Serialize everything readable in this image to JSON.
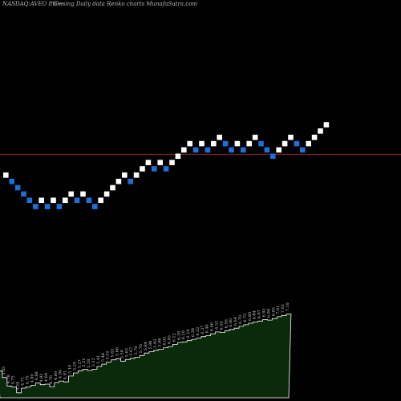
{
  "header": {
    "ticker": "NASDAQ:AVEO 8%~",
    "description": "Closing Daily data  Renko  charts MunafaSutra.com"
  },
  "chart_data": {
    "type": "renko",
    "colors": {
      "background": "#000000",
      "up_brick": "#ffffff",
      "down_brick": "#1e6fd9",
      "reference_line": "#8b2b2b",
      "volume_fill": "#0b2a0b",
      "volume_line": "#ffffff"
    },
    "bricks": [
      {
        "level": 7.88,
        "dir": "up"
      },
      {
        "level": 7.83,
        "dir": "down"
      },
      {
        "level": 7.78,
        "dir": "down"
      },
      {
        "level": 7.73,
        "dir": "down"
      },
      {
        "level": 7.68,
        "dir": "down"
      },
      {
        "level": 7.63,
        "dir": "down"
      },
      {
        "level": 7.68,
        "dir": "up"
      },
      {
        "level": 7.63,
        "dir": "down"
      },
      {
        "level": 7.68,
        "dir": "up"
      },
      {
        "level": 7.63,
        "dir": "down"
      },
      {
        "level": 7.68,
        "dir": "up"
      },
      {
        "level": 7.73,
        "dir": "up"
      },
      {
        "level": 7.68,
        "dir": "down"
      },
      {
        "level": 7.73,
        "dir": "up"
      },
      {
        "level": 7.68,
        "dir": "down"
      },
      {
        "level": 7.63,
        "dir": "down"
      },
      {
        "level": 7.68,
        "dir": "up"
      },
      {
        "level": 7.73,
        "dir": "up"
      },
      {
        "level": 7.78,
        "dir": "up"
      },
      {
        "level": 7.83,
        "dir": "up"
      },
      {
        "level": 7.88,
        "dir": "up"
      },
      {
        "level": 7.83,
        "dir": "down"
      },
      {
        "level": 7.88,
        "dir": "up"
      },
      {
        "level": 7.93,
        "dir": "up"
      },
      {
        "level": 7.98,
        "dir": "up"
      },
      {
        "level": 7.93,
        "dir": "down"
      },
      {
        "level": 7.98,
        "dir": "up"
      },
      {
        "level": 7.93,
        "dir": "down"
      },
      {
        "level": 7.98,
        "dir": "up"
      },
      {
        "level": 8.03,
        "dir": "up"
      },
      {
        "level": 8.08,
        "dir": "up"
      },
      {
        "level": 8.13,
        "dir": "up"
      },
      {
        "level": 8.08,
        "dir": "down"
      },
      {
        "level": 8.13,
        "dir": "up"
      },
      {
        "level": 8.08,
        "dir": "down"
      },
      {
        "level": 8.13,
        "dir": "up"
      },
      {
        "level": 8.18,
        "dir": "up"
      },
      {
        "level": 8.13,
        "dir": "down"
      },
      {
        "level": 8.08,
        "dir": "down"
      },
      {
        "level": 8.13,
        "dir": "up"
      },
      {
        "level": 8.08,
        "dir": "down"
      },
      {
        "level": 8.13,
        "dir": "up"
      },
      {
        "level": 8.18,
        "dir": "up"
      },
      {
        "level": 8.13,
        "dir": "down"
      },
      {
        "level": 8.08,
        "dir": "down"
      },
      {
        "level": 8.03,
        "dir": "down"
      },
      {
        "level": 8.08,
        "dir": "up"
      },
      {
        "level": 8.13,
        "dir": "up"
      },
      {
        "level": 8.18,
        "dir": "up"
      },
      {
        "level": 8.13,
        "dir": "down"
      },
      {
        "level": 8.08,
        "dir": "down"
      },
      {
        "level": 8.13,
        "dir": "up"
      },
      {
        "level": 8.18,
        "dir": "up"
      },
      {
        "level": 8.23,
        "dir": "up"
      },
      {
        "level": 8.28,
        "dir": "up"
      }
    ],
    "reference_level": 8.045,
    "price_range": [
      7.5,
      8.5
    ],
    "volume": {
      "values": [
        5.26,
        5.05,
        4.78,
        4.75,
        4.56,
        4.71,
        4.75,
        4.8,
        4.88,
        4.82,
        4.84,
        4.76,
        4.89,
        4.94,
        4.91,
        5.1,
        5.2,
        5.27,
        5.31,
        5.28,
        5.32,
        5.41,
        5.48,
        5.55,
        5.62,
        5.66,
        5.58,
        5.63,
        5.67,
        5.7,
        5.76,
        5.84,
        5.88,
        5.93,
        5.96,
        6.01,
        6.05,
        6.12,
        6.18,
        6.2,
        6.24,
        6.28,
        6.32,
        6.37,
        6.4,
        6.46,
        6.52,
        6.5,
        6.56,
        6.6,
        6.64,
        6.7,
        6.75,
        6.8,
        6.84,
        6.87,
        6.92,
        6.9,
        6.95,
        7.01,
        7.05,
        7.1
      ],
      "labels": [
        "5.26",
        "5.05",
        "4.78",
        "4.75",
        "4.56",
        "4.71",
        "4.75",
        "4.80",
        "4.88",
        "4.82",
        "4.84",
        "4.76",
        "4.89",
        "4.94",
        "4.91",
        "5.10",
        "5.20",
        "5.27",
        "5.31",
        "5.28",
        "5.32",
        "5.41",
        "5.48",
        "5.55",
        "5.62",
        "5.66",
        "5.58",
        "5.63",
        "5.67",
        "5.70",
        "5.76",
        "5.84",
        "5.88",
        "5.93",
        "5.96",
        "6.01",
        "6.05",
        "6.12",
        "6.18",
        "6.20",
        "6.24",
        "6.28",
        "6.32",
        "6.37",
        "6.40",
        "6.46",
        "6.52",
        "6.50",
        "6.56",
        "6.60",
        "6.64",
        "6.70",
        "6.75",
        "6.80",
        "6.84",
        "6.87",
        "6.92",
        "6.90",
        "6.95",
        "7.01",
        "7.05",
        "7.10"
      ],
      "range": [
        4.4,
        7.6
      ]
    }
  }
}
